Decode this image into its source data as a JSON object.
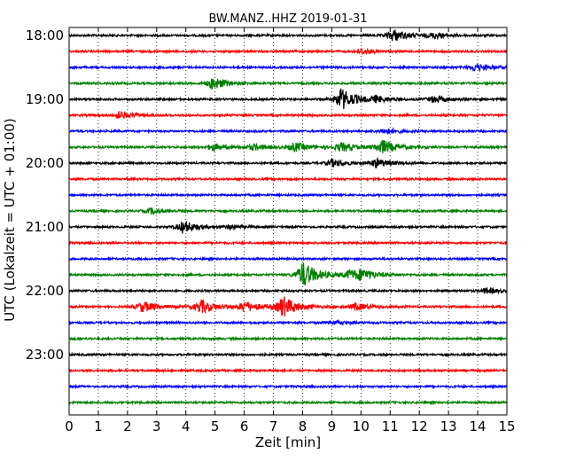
{
  "chart_data": {
    "type": "line",
    "title": "BW.MANZ..HHZ 2019-01-31",
    "xlabel": "Zeit  [min]",
    "ylabel": "UTC (Lokalzeit = UTC + 01:00)",
    "xlim": [
      0,
      15
    ],
    "x_ticks": [
      "0",
      "1",
      "2",
      "3",
      "4",
      "5",
      "6",
      "7",
      "8",
      "9",
      "10",
      "11",
      "12",
      "13",
      "14",
      "15"
    ],
    "y_ticks": [
      "18:00",
      "19:00",
      "20:00",
      "21:00",
      "22:00",
      "23:00"
    ],
    "grid": "vertical dotted",
    "colors": [
      "#000000",
      "#ff0000",
      "#0000ff",
      "#008000"
    ],
    "series": [
      {
        "start": "18:00",
        "color": "#000000",
        "events": [
          {
            "t": 11.1,
            "a": 7
          },
          {
            "t": 12.5,
            "a": 3
          }
        ]
      },
      {
        "start": "18:15",
        "color": "#ff0000",
        "events": [
          {
            "t": 10.0,
            "a": 3
          }
        ]
      },
      {
        "start": "18:30",
        "color": "#0000ff",
        "events": [
          {
            "t": 13.9,
            "a": 4
          }
        ]
      },
      {
        "start": "18:45",
        "color": "#008000",
        "events": [
          {
            "t": 4.9,
            "a": 7
          }
        ]
      },
      {
        "start": "19:00",
        "color": "#000000",
        "events": [
          {
            "t": 9.3,
            "a": 13
          },
          {
            "t": 12.5,
            "a": 4
          },
          {
            "t": 10.5,
            "a": 3
          }
        ]
      },
      {
        "start": "19:15",
        "color": "#ff0000",
        "events": [
          {
            "t": 1.7,
            "a": 4
          }
        ]
      },
      {
        "start": "19:30",
        "color": "#0000ff",
        "events": [
          {
            "t": 10.8,
            "a": 3
          }
        ]
      },
      {
        "start": "19:45",
        "color": "#008000",
        "events": [
          {
            "t": 10.7,
            "a": 8
          },
          {
            "t": 7.7,
            "a": 5
          },
          {
            "t": 9.3,
            "a": 5
          },
          {
            "t": 4.9,
            "a": 4
          },
          {
            "t": 6.3,
            "a": 3
          }
        ]
      },
      {
        "start": "20:00",
        "color": "#000000",
        "events": [
          {
            "t": 10.5,
            "a": 5
          },
          {
            "t": 9.0,
            "a": 4
          }
        ]
      },
      {
        "start": "20:15",
        "color": "#ff0000",
        "events": []
      },
      {
        "start": "20:30",
        "color": "#0000ff",
        "events": []
      },
      {
        "start": "20:45",
        "color": "#008000",
        "events": [
          {
            "t": 2.8,
            "a": 3
          }
        ]
      },
      {
        "start": "21:00",
        "color": "#000000",
        "events": [
          {
            "t": 3.9,
            "a": 7
          },
          {
            "t": 5.5,
            "a": 2
          }
        ]
      },
      {
        "start": "21:15",
        "color": "#ff0000",
        "events": []
      },
      {
        "start": "21:30",
        "color": "#0000ff",
        "events": []
      },
      {
        "start": "21:45",
        "color": "#008000",
        "events": [
          {
            "t": 8.0,
            "a": 15
          },
          {
            "t": 9.6,
            "a": 5
          },
          {
            "t": 10.0,
            "a": 5
          }
        ]
      },
      {
        "start": "22:00",
        "color": "#000000",
        "events": [
          {
            "t": 14.3,
            "a": 3
          }
        ]
      },
      {
        "start": "22:15",
        "color": "#ff0000",
        "events": [
          {
            "t": 7.3,
            "a": 12
          },
          {
            "t": 4.5,
            "a": 8
          },
          {
            "t": 2.5,
            "a": 6
          },
          {
            "t": 6.0,
            "a": 6
          },
          {
            "t": 9.8,
            "a": 4
          }
        ]
      },
      {
        "start": "22:30",
        "color": "#0000ff",
        "events": [
          {
            "t": 9.0,
            "a": 2
          }
        ]
      },
      {
        "start": "22:45",
        "color": "#008000",
        "events": []
      },
      {
        "start": "23:00",
        "color": "#000000",
        "events": []
      },
      {
        "start": "23:15",
        "color": "#ff0000",
        "events": []
      },
      {
        "start": "23:30",
        "color": "#0000ff",
        "events": []
      },
      {
        "start": "23:45",
        "color": "#008000",
        "events": []
      }
    ]
  }
}
